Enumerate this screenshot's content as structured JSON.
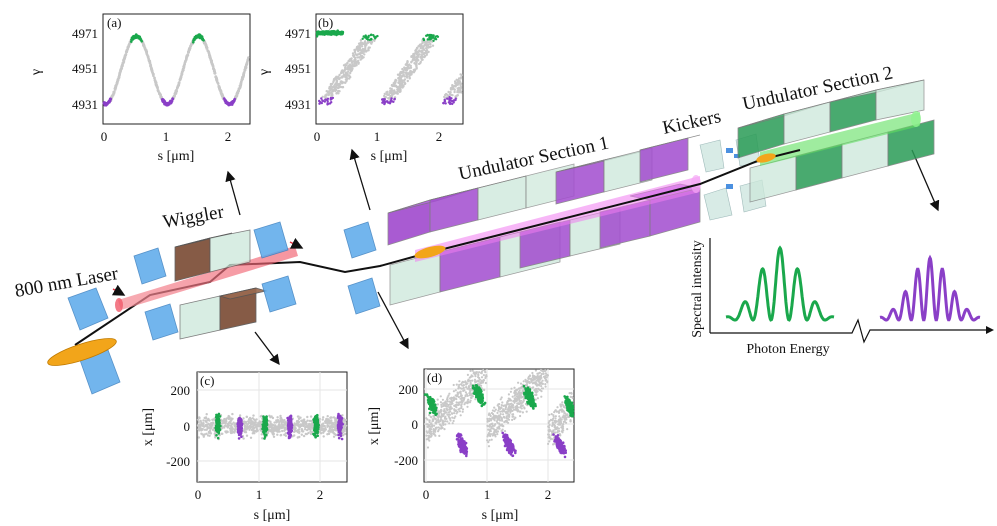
{
  "labels": {
    "laser": "800 nm Laser",
    "wiggler": "Wiggler",
    "undulator1": "Undulator Section 1",
    "kickers": "Kickers",
    "undulator2": "Undulator Section 2"
  },
  "spectrum": {
    "ylabel": "Spectral intensity",
    "xlabel": "Photon Energy"
  },
  "panels": {
    "a": {
      "tag": "(a)",
      "ylabel": "γ",
      "xlabel": "s [μm]",
      "yticks": [
        "4971",
        "4951",
        "4931"
      ],
      "xticks": [
        "0",
        "1",
        "2"
      ]
    },
    "b": {
      "tag": "(b)",
      "ylabel": "γ",
      "xlabel": "s [μm]",
      "yticks": [
        "4971",
        "4951",
        "4931"
      ],
      "xticks": [
        "0",
        "1",
        "2"
      ]
    },
    "c": {
      "tag": "(c)",
      "ylabel": "x [μm]",
      "xlabel": "s [μm]",
      "yticks": [
        "200",
        "0",
        "-200"
      ],
      "xticks": [
        "0",
        "1",
        "2"
      ]
    },
    "d": {
      "tag": "(d)",
      "ylabel": "x [μm]",
      "xlabel": "s [μm]",
      "yticks": [
        "200",
        "0",
        "-200"
      ],
      "xticks": [
        "0",
        "1",
        "2"
      ]
    }
  },
  "colors": {
    "green": "#1aa84c",
    "purple": "#8a3fc7",
    "gray": "#c8c8c8",
    "magnet_green": "#bfe3d0",
    "magnet_purple": "#a24ccf",
    "wiggler_brown": "#7a4a32",
    "cube_blue": "#5aa9ea",
    "laser_red": "#f06070",
    "beam_magenta": "#f07cf0",
    "beam_green": "#5fe05f",
    "bunch_orange": "#f2a51a"
  }
}
